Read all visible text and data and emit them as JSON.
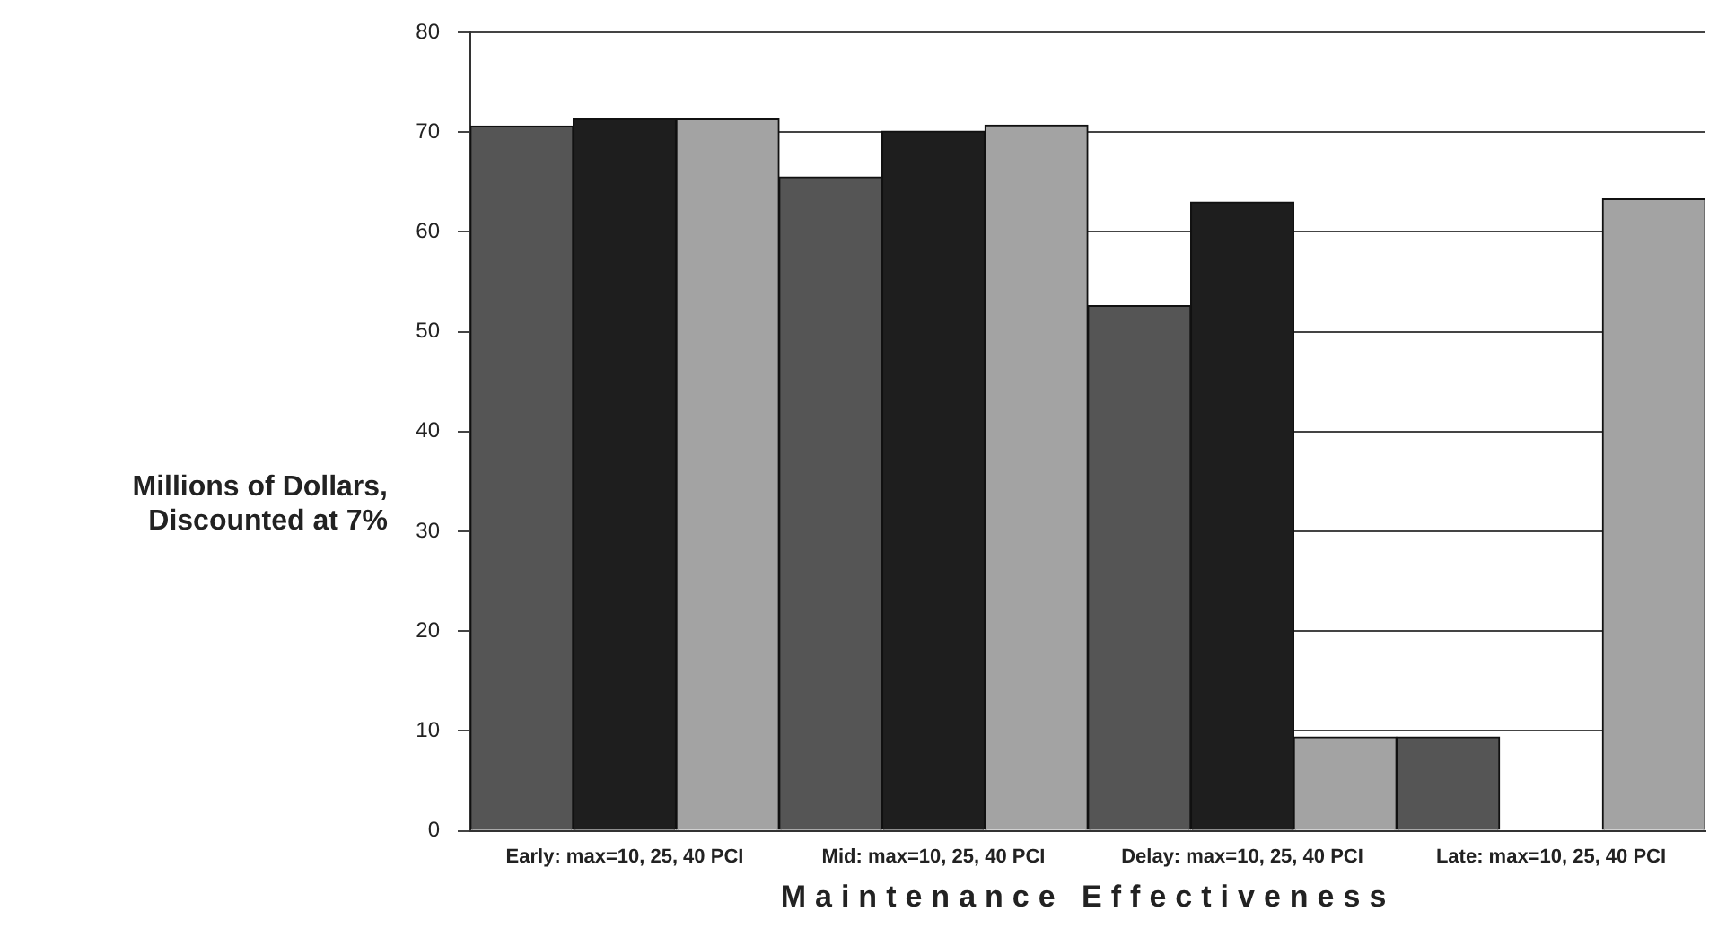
{
  "chart_data": {
    "type": "bar",
    "xlabel": "Maintenance Effectiveness",
    "ylabel": "Millions of Dollars, Discounted at 7%",
    "categories": [
      "Early: max=10, 25, 40 PCI",
      "Mid: max=10, 25, 40 PCI",
      "Delay: max=10, 25, 40 PCI",
      "Late: max=10, 25, 40 PCI"
    ],
    "series": [
      {
        "color": "#555555",
        "values": [
          70.6,
          65.5,
          52.6,
          9.4
        ]
      },
      {
        "color": "#1e1e1e",
        "values": [
          71.3,
          70.1,
          63.0,
          null
        ]
      },
      {
        "color": "#a3a3a3",
        "values": [
          71.3,
          70.7,
          9.4,
          63.3
        ]
      }
    ],
    "ylim": [
      0,
      80
    ],
    "yticks": [
      0,
      10,
      20,
      30,
      40,
      50,
      60,
      70,
      80
    ],
    "grid": "y",
    "legend": false
  }
}
